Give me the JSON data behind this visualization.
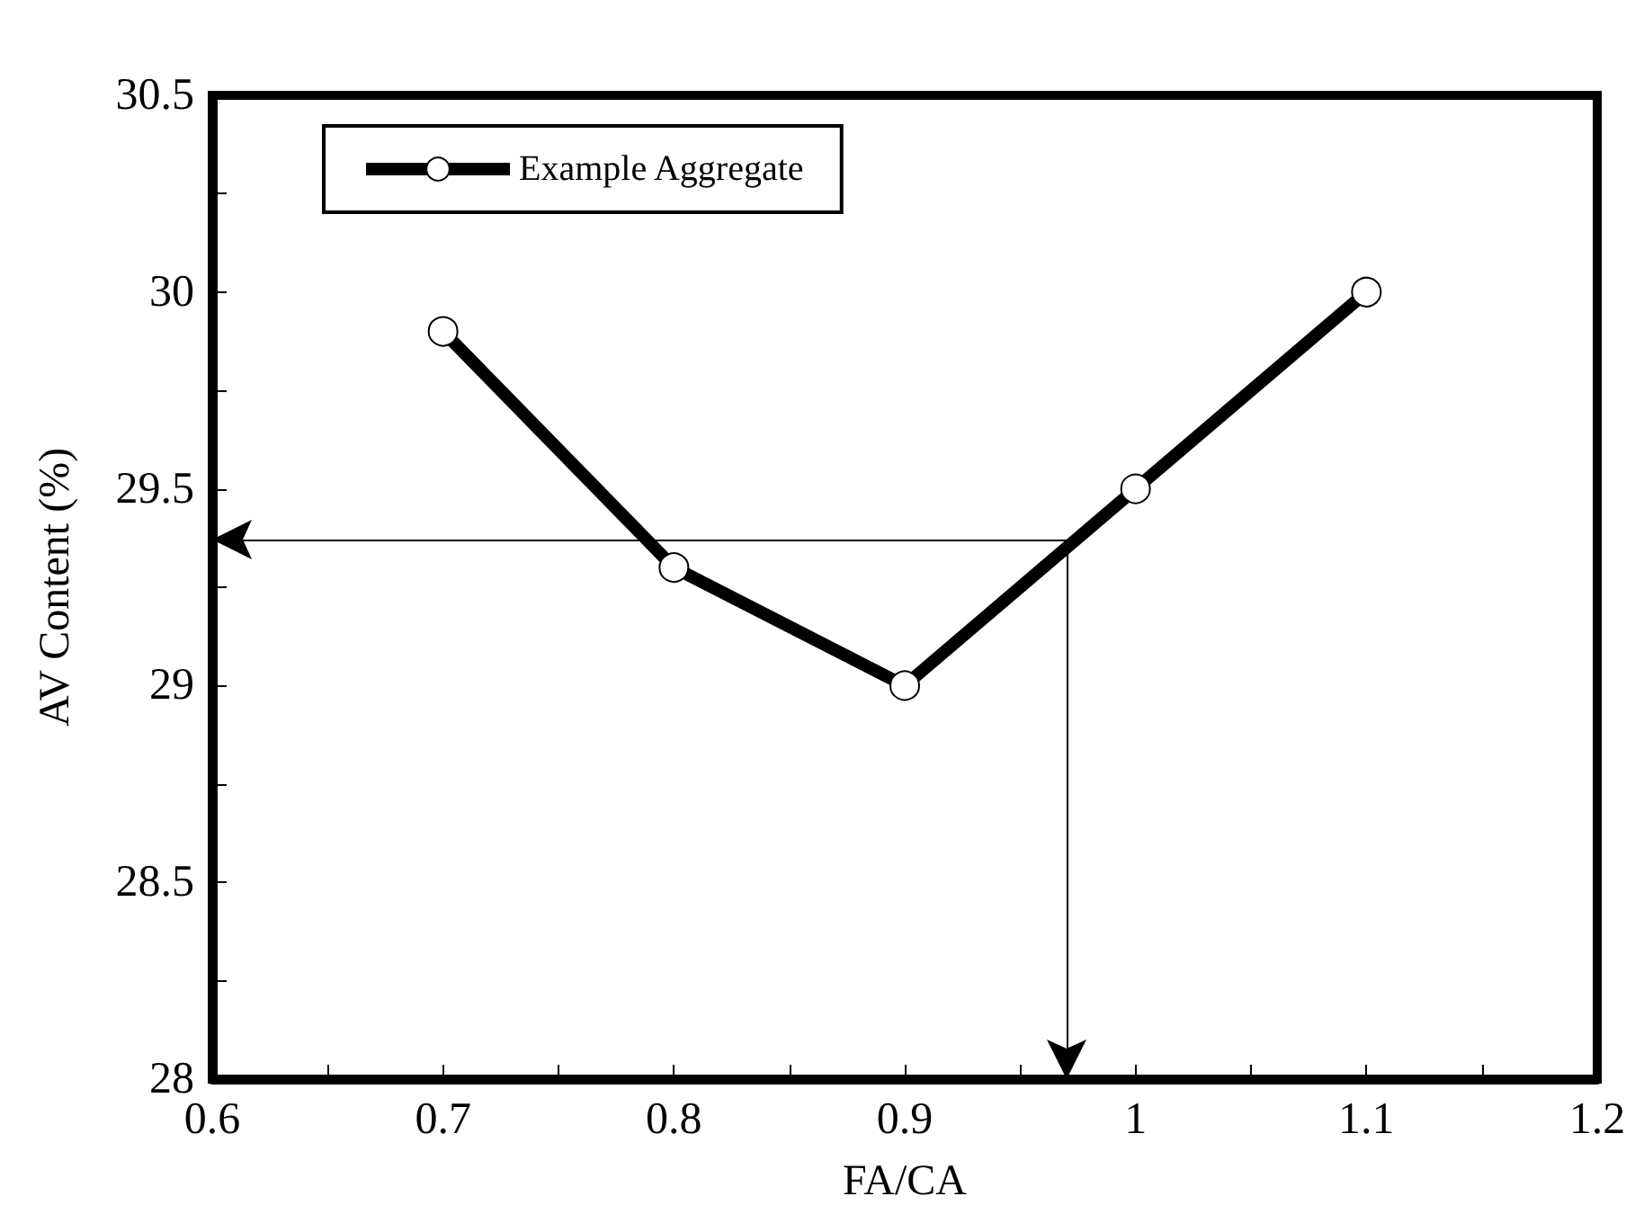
{
  "chart_data": {
    "type": "line",
    "xlabel": "FA/CA",
    "ylabel": "AV Content (%)",
    "x": [
      0.7,
      0.8,
      0.9,
      1.0,
      1.1
    ],
    "series": [
      {
        "name": "Example Aggregate",
        "color": "#000000",
        "values": [
          29.9,
          29.3,
          29.0,
          29.5,
          30.0
        ]
      }
    ],
    "marker": "circle",
    "line_style": "solid",
    "legend": "top left",
    "grid": false,
    "xlim": [
      0.6,
      1.2
    ],
    "xticks": [
      0.6,
      {
        "value": 0.65,
        "label": null
      },
      0.7,
      {
        "value": 0.75,
        "label": null
      },
      0.8,
      {
        "value": 0.85,
        "label": null
      },
      0.9,
      {
        "value": 0.95,
        "label": null
      },
      1,
      {
        "value": 1.05,
        "label": null
      },
      1.1,
      {
        "value": 1.15,
        "label": null
      },
      1.2
    ],
    "ylim": [
      28,
      30.5
    ],
    "yticks": [
      28,
      {
        "value": 28.25,
        "label": null
      },
      28.5,
      {
        "value": 28.75,
        "label": null
      },
      29,
      {
        "value": 29.25,
        "label": null
      },
      29.5,
      {
        "value": 29.75,
        "label": null
      },
      30,
      {
        "value": 30.25,
        "label": null
      },
      30.5
    ],
    "ref_lines": [
      {
        "axis": "y",
        "value": 29.37,
        "label": null
      },
      {
        "axis": "x",
        "value": 0.97,
        "label": null
      }
    ]
  }
}
